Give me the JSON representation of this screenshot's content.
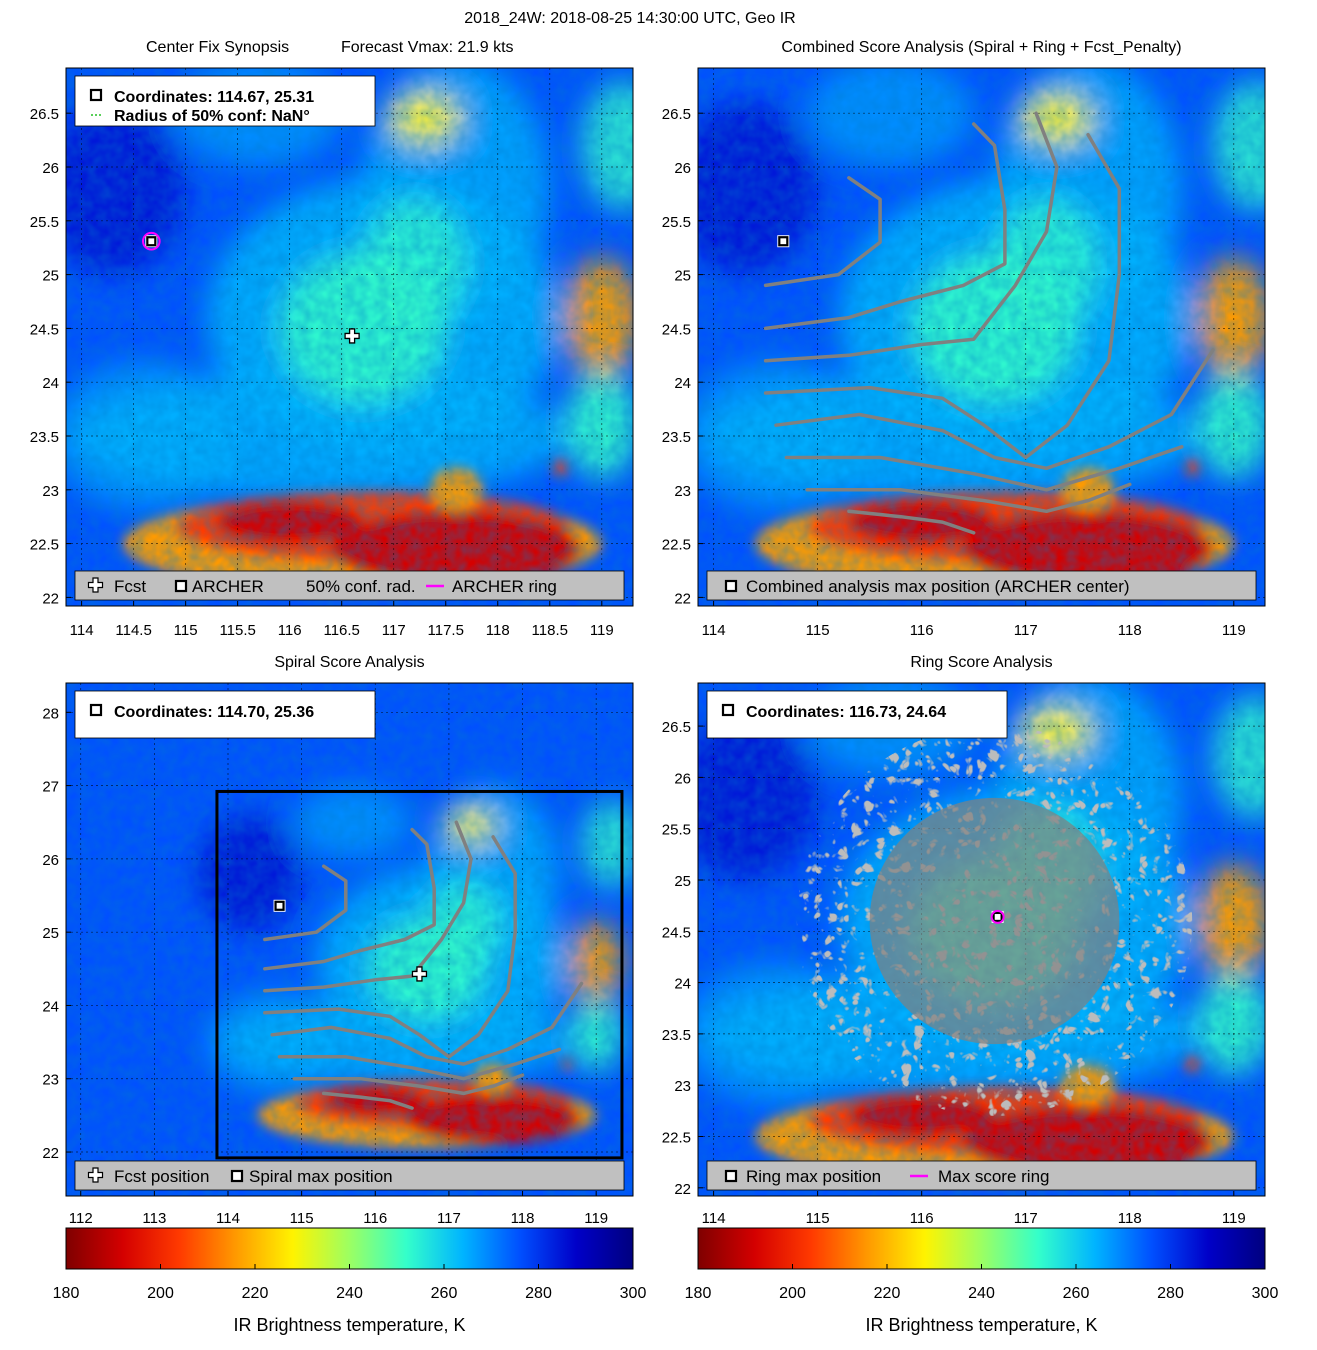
{
  "figure": {
    "title": "2018_24W: 2018-08-25 14:30:00 UTC, Geo IR"
  },
  "colors": {
    "colormap": [
      "#7f0000",
      "#d40000",
      "#ff3a00",
      "#ff9a00",
      "#fff300",
      "#9cff62",
      "#34ffca",
      "#00b4ff",
      "#0050ff",
      "#0000c8",
      "#00007f"
    ],
    "track": "#808080",
    "ring": "#ff00ff",
    "box": "#000000"
  },
  "panels": [
    {
      "id": "center-fix",
      "title": "Center Fix Synopsis",
      "title2": "Forecast Vmax: 21.9 kts",
      "info_lines": [
        "Coordinates: 114.67, 25.31",
        "Radius of 50% conf: NaN°"
      ],
      "legend": [
        "Fcst",
        "ARCHER",
        "50% conf. rad.",
        "ARCHER ring"
      ],
      "chart_data": {
        "type": "heatmap",
        "xlim": [
          113.85,
          119.3
        ],
        "ylim": [
          21.92,
          26.92
        ],
        "xticks": [
          114,
          114.5,
          115,
          115.5,
          116,
          116.5,
          117,
          117.5,
          118,
          118.5,
          119
        ],
        "xtick_labels": [
          "114",
          "114.5",
          "115",
          "115.5",
          "116",
          "116.5",
          "117",
          "117.5",
          "118",
          "118.5",
          "119"
        ],
        "yticks": [
          22,
          22.5,
          23,
          23.5,
          24,
          24.5,
          25,
          25.5,
          26,
          26.5
        ],
        "ytick_labels": [
          "22",
          "22.5",
          "23",
          "23.5",
          "24",
          "24.5",
          "25",
          "25.5",
          "26",
          "26.5"
        ],
        "grid": true,
        "fcst": [
          116.6,
          24.43
        ],
        "archer": [
          114.67,
          25.31
        ],
        "archer_ring_radius_deg": 0.08
      }
    },
    {
      "id": "combined",
      "title": "Combined Score Analysis (Spiral + Ring + Fcst_Penalty)",
      "legend": [
        "Combined analysis max position (ARCHER center)"
      ],
      "chart_data": {
        "type": "heatmap",
        "xlim": [
          113.85,
          119.3
        ],
        "ylim": [
          21.92,
          26.92
        ],
        "xticks": [
          114,
          115,
          116,
          117,
          118,
          119
        ],
        "xtick_labels": [
          "114",
          "115",
          "116",
          "117",
          "118",
          "119"
        ],
        "yticks": [
          22,
          22.5,
          23,
          23.5,
          24,
          24.5,
          25,
          25.5,
          26,
          26.5
        ],
        "ytick_labels": [
          "22",
          "22.5",
          "23",
          "23.5",
          "24",
          "24.5",
          "25",
          "25.5",
          "26",
          "26.5"
        ],
        "grid": true,
        "archer": [
          114.67,
          25.31
        ]
      }
    },
    {
      "id": "spiral",
      "title": "Spiral Score Analysis",
      "info_lines": [
        "Coordinates: 114.70, 25.36"
      ],
      "legend": [
        "Fcst position",
        "Spiral max position"
      ],
      "chart_data": {
        "type": "heatmap",
        "xlim": [
          111.8,
          119.5
        ],
        "ylim": [
          21.4,
          28.4
        ],
        "xticks": [
          112,
          113,
          114,
          115,
          116,
          117,
          118,
          119
        ],
        "xtick_labels": [
          "112",
          "113",
          "114",
          "115",
          "116",
          "117",
          "118",
          "119"
        ],
        "yticks": [
          22,
          23,
          24,
          25,
          26,
          27,
          28
        ],
        "ytick_labels": [
          "22",
          "23",
          "24",
          "25",
          "26",
          "27",
          "28"
        ],
        "grid": true,
        "fcst": [
          116.6,
          24.43
        ],
        "spiral_max": [
          114.7,
          25.36
        ],
        "search_box": {
          "lon": [
            113.85,
            119.35
          ],
          "lat": [
            21.92,
            26.92
          ]
        }
      }
    },
    {
      "id": "ring",
      "title": "Ring Score Analysis",
      "info_lines": [
        "Coordinates: 116.73, 24.64"
      ],
      "legend": [
        "Ring max position",
        "Max score ring"
      ],
      "chart_data": {
        "type": "heatmap",
        "xlim": [
          113.85,
          119.3
        ],
        "ylim": [
          21.92,
          26.92
        ],
        "xticks": [
          114,
          115,
          116,
          117,
          118,
          119
        ],
        "xtick_labels": [
          "114",
          "115",
          "116",
          "117",
          "118",
          "119"
        ],
        "yticks": [
          22,
          22.5,
          23,
          23.5,
          24,
          24.5,
          25,
          25.5,
          26,
          26.5
        ],
        "ytick_labels": [
          "22",
          "22.5",
          "23",
          "23.5",
          "24",
          "24.5",
          "25",
          "25.5",
          "26",
          "26.5"
        ],
        "grid": true,
        "ring_max": [
          116.73,
          24.64
        ]
      }
    }
  ],
  "colorbars": [
    {
      "label": "IR Brightness temperature, K",
      "range": [
        180,
        300
      ],
      "ticks": [
        "180",
        "200",
        "220",
        "240",
        "260",
        "280",
        "300"
      ]
    },
    {
      "label": "IR Brightness temperature, K",
      "range": [
        180,
        300
      ],
      "ticks": [
        "180",
        "200",
        "220",
        "240",
        "260",
        "280",
        "300"
      ]
    }
  ]
}
